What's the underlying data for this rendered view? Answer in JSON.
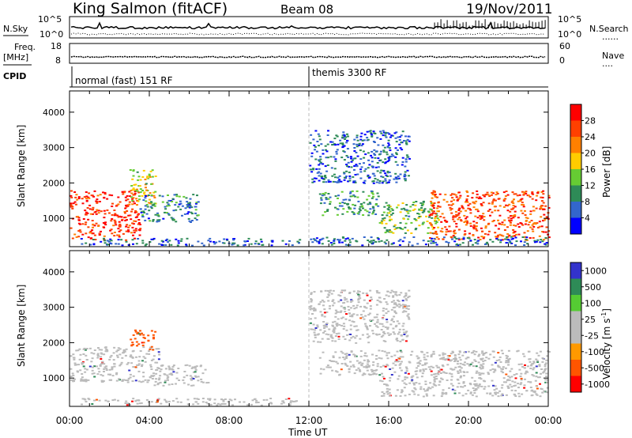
{
  "header": {
    "station": "King Salmon (fitACF)",
    "beam": "Beam 08",
    "date": "19/Nov/2011"
  },
  "aux_panels": {
    "nsky_label": "N.Sky",
    "nsky_ticks": [
      "10^5",
      "10^0"
    ],
    "nsearch_label": "N.Search",
    "nsearch_ticks": [
      "10^5",
      "10^0"
    ],
    "freq_label": "Freq.",
    "freq_unit": "[MHz]",
    "freq_ticks": [
      "18",
      "8"
    ],
    "nave_label": "Nave",
    "nave_ticks": [
      "60",
      "0"
    ],
    "cpid_label": "CPID",
    "modes": [
      {
        "label": "normal (fast) 151 RF",
        "start": 0
      },
      {
        "label": "themis 3300 RF",
        "start": 12
      }
    ]
  },
  "axes": {
    "xlabel": "Time UT",
    "x_ticks": [
      "00:00",
      "04:00",
      "08:00",
      "12:00",
      "16:00",
      "20:00",
      "00:00"
    ],
    "ylabel": "Slant Range [km]",
    "y_ticks": [
      "1000",
      "2000",
      "3000",
      "4000"
    ],
    "ylim": [
      200,
      4600
    ],
    "xlim": [
      0,
      24
    ]
  },
  "chart_data": [
    {
      "type": "heatmap",
      "parameter": "Power",
      "colorbar_label": "Power [dB]",
      "colorbar_ticks": [
        "4",
        "8",
        "12",
        "16",
        "20",
        "24",
        "28"
      ],
      "colorbar_range": [
        0,
        30
      ],
      "colors": [
        "#0000ff",
        "#3366cc",
        "#2e8b57",
        "#66cc33",
        "#ffcc00",
        "#ff8000",
        "#ff4000",
        "#ff0000"
      ],
      "regions": [
        {
          "t": [
            0.0,
            3.5
          ],
          "r": [
            400,
            1800
          ],
          "value": 26
        },
        {
          "t": [
            3.0,
            4.3
          ],
          "r": [
            1400,
            2400
          ],
          "value": 16
        },
        {
          "t": [
            3.5,
            6.5
          ],
          "r": [
            900,
            1700
          ],
          "value": 8
        },
        {
          "t": [
            0.5,
            11.5
          ],
          "r": [
            250,
            450
          ],
          "value": 6
        },
        {
          "t": [
            12.5,
            15.5
          ],
          "r": [
            1100,
            1800
          ],
          "value": 10
        },
        {
          "t": [
            12.0,
            17.0
          ],
          "r": [
            2000,
            3500
          ],
          "value": 6
        },
        {
          "t": [
            15.5,
            18.5
          ],
          "r": [
            600,
            1500
          ],
          "value": 12
        },
        {
          "t": [
            18.0,
            24.0
          ],
          "r": [
            400,
            1800
          ],
          "value": 24
        },
        {
          "t": [
            12.0,
            24.0
          ],
          "r": [
            250,
            500
          ],
          "value": 6
        }
      ]
    },
    {
      "type": "heatmap",
      "parameter": "Velocity",
      "colorbar_label": "Velocity [m s^-1]",
      "colorbar_ticks": [
        "1000",
        "500",
        "100",
        "25",
        "-25",
        "-100",
        "-500",
        "-1000"
      ],
      "colorbar_range": [
        -1000,
        1000
      ],
      "colors": [
        "#3333cc",
        "#2e8b57",
        "#55cc33",
        "#bbbbbb",
        "#bbbbbb",
        "#ff9900",
        "#ff5500",
        "#ff0000"
      ],
      "regions": [
        {
          "t": [
            0.0,
            4.5
          ],
          "r": [
            900,
            1900
          ],
          "value": 0
        },
        {
          "t": [
            3.0,
            4.3
          ],
          "r": [
            1900,
            2400
          ],
          "value": -150
        },
        {
          "t": [
            4.0,
            7.0
          ],
          "r": [
            800,
            1400
          ],
          "value": 0
        },
        {
          "t": [
            0.5,
            11.5
          ],
          "r": [
            250,
            450
          ],
          "value": 0
        },
        {
          "t": [
            12.5,
            15.5
          ],
          "r": [
            1100,
            1800
          ],
          "value": 0
        },
        {
          "t": [
            15.5,
            24.0
          ],
          "r": [
            500,
            1800
          ],
          "value": 0
        },
        {
          "t": [
            12.0,
            17.0
          ],
          "r": [
            2000,
            3500
          ],
          "value": 0
        }
      ]
    }
  ]
}
